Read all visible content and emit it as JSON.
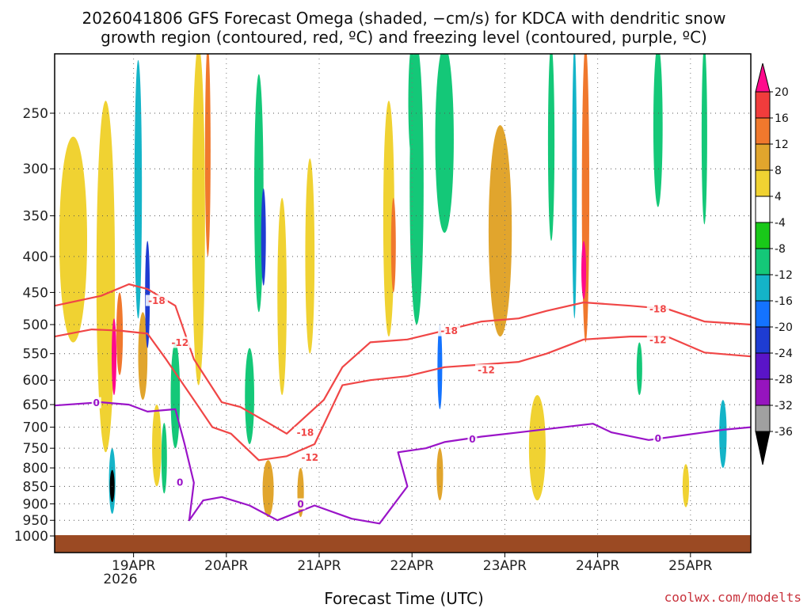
{
  "chart_data": {
    "type": "heatmap",
    "title_line1": "2026041806 GFS Forecast Omega (shaded, −cm/s) for KDCA with dendritic snow",
    "title_line2": "growth region (contoured, red, ºC) and freezing level (contoured, purple, ºC)",
    "xlabel": "Forecast Time (UTC)",
    "ylabel": "",
    "credit": "coolwx.com/modelts",
    "x_range_days": [
      0,
      7.5
    ],
    "x_ticks": [
      {
        "label": "19APR",
        "day": 0.85
      },
      {
        "label": "20APR",
        "day": 1.85
      },
      {
        "label": "21APR",
        "day": 2.85
      },
      {
        "label": "22APR",
        "day": 3.85
      },
      {
        "label": "23APR",
        "day": 4.85
      },
      {
        "label": "24APR",
        "day": 5.85
      },
      {
        "label": "25APR",
        "day": 6.85
      }
    ],
    "x_year_label": "2026",
    "y_range_hpa": [
      200,
      1020
    ],
    "y_ticks": [
      250,
      300,
      350,
      400,
      450,
      500,
      550,
      600,
      650,
      700,
      750,
      800,
      850,
      900,
      950,
      1000
    ],
    "colorbar": {
      "levels": [
        "20",
        "16",
        "12",
        "8",
        "4",
        "-4",
        "-8",
        "-12",
        "-16",
        "-20",
        "-24",
        "-28",
        "-32",
        "-36"
      ],
      "colors": [
        "#ff0a8c",
        "#f03c3c",
        "#f0782d",
        "#e1a52d",
        "#f0d232",
        "#ffffff",
        "#19c819",
        "#14c878",
        "#14b4c8",
        "#1473ff",
        "#1e3cd2",
        "#5a14c8",
        "#9614be",
        "#a0a0a0",
        "#000000"
      ]
    },
    "omega_cells": [
      {
        "day": 0.2,
        "p": 400,
        "w": 0.3,
        "h": 260,
        "v": 5
      },
      {
        "day": 0.55,
        "p": 500,
        "w": 0.2,
        "h": 520,
        "v": 5
      },
      {
        "day": 0.7,
        "p": 520,
        "w": 0.07,
        "h": 140,
        "v": 14
      },
      {
        "day": 0.95,
        "p": 560,
        "w": 0.1,
        "h": 160,
        "v": 10
      },
      {
        "day": 0.62,
        "p": 840,
        "w": 0.07,
        "h": 180,
        "v": -15
      },
      {
        "day": 0.62,
        "p": 850,
        "w": 0.025,
        "h": 90,
        "v": -36
      },
      {
        "day": 0.64,
        "p": 560,
        "w": 0.05,
        "h": 140,
        "v": 20
      },
      {
        "day": 0.9,
        "p": 350,
        "w": 0.08,
        "h": 280,
        "v": -12
      },
      {
        "day": 1.0,
        "p": 460,
        "w": 0.05,
        "h": 160,
        "v": -22
      },
      {
        "day": 1.1,
        "p": 750,
        "w": 0.1,
        "h": 200,
        "v": 6
      },
      {
        "day": 1.3,
        "p": 640,
        "w": 0.1,
        "h": 220,
        "v": -10
      },
      {
        "day": 1.18,
        "p": 780,
        "w": 0.06,
        "h": 180,
        "v": -8
      },
      {
        "day": 1.55,
        "p": 380,
        "w": 0.14,
        "h": 460,
        "v": 5
      },
      {
        "day": 1.65,
        "p": 300,
        "w": 0.06,
        "h": 200,
        "v": 12
      },
      {
        "day": 2.2,
        "p": 350,
        "w": 0.1,
        "h": 260,
        "v": -10
      },
      {
        "day": 2.25,
        "p": 380,
        "w": 0.04,
        "h": 120,
        "v": -20
      },
      {
        "day": 2.1,
        "p": 640,
        "w": 0.1,
        "h": 200,
        "v": -10
      },
      {
        "day": 2.45,
        "p": 480,
        "w": 0.1,
        "h": 300,
        "v": 6
      },
      {
        "day": 2.3,
        "p": 860,
        "w": 0.12,
        "h": 160,
        "v": 8
      },
      {
        "day": 2.75,
        "p": 420,
        "w": 0.1,
        "h": 260,
        "v": 5
      },
      {
        "day": 2.65,
        "p": 870,
        "w": 0.07,
        "h": 140,
        "v": 9
      },
      {
        "day": 3.6,
        "p": 380,
        "w": 0.12,
        "h": 280,
        "v": 6
      },
      {
        "day": 3.65,
        "p": 390,
        "w": 0.05,
        "h": 120,
        "v": 14
      },
      {
        "day": 3.85,
        "p": 220,
        "w": 0.08,
        "h": 140,
        "v": -10
      },
      {
        "day": 3.9,
        "p": 350,
        "w": 0.15,
        "h": 300,
        "v": -8
      },
      {
        "day": 4.2,
        "p": 260,
        "w": 0.2,
        "h": 220,
        "v": -8
      },
      {
        "day": 4.15,
        "p": 580,
        "w": 0.05,
        "h": 160,
        "v": -16
      },
      {
        "day": 4.15,
        "p": 820,
        "w": 0.07,
        "h": 140,
        "v": 8
      },
      {
        "day": 4.8,
        "p": 390,
        "w": 0.25,
        "h": 260,
        "v": 8
      },
      {
        "day": 5.35,
        "p": 260,
        "w": 0.07,
        "h": 240,
        "v": -8
      },
      {
        "day": 5.6,
        "p": 330,
        "w": 0.05,
        "h": 320,
        "v": -14
      },
      {
        "day": 5.72,
        "p": 330,
        "w": 0.08,
        "h": 400,
        "v": 12
      },
      {
        "day": 5.7,
        "p": 420,
        "w": 0.03,
        "h": 80,
        "v": 20
      },
      {
        "day": 5.2,
        "p": 760,
        "w": 0.18,
        "h": 260,
        "v": 6
      },
      {
        "day": 6.5,
        "p": 260,
        "w": 0.1,
        "h": 160,
        "v": -8
      },
      {
        "day": 7.0,
        "p": 280,
        "w": 0.06,
        "h": 160,
        "v": -8
      },
      {
        "day": 7.2,
        "p": 720,
        "w": 0.08,
        "h": 160,
        "v": -12
      },
      {
        "day": 6.3,
        "p": 580,
        "w": 0.06,
        "h": 100,
        "v": -8
      },
      {
        "day": 6.8,
        "p": 850,
        "w": 0.07,
        "h": 120,
        "v": 5
      }
    ],
    "contours": [
      {
        "name": "dendritic-18",
        "color": "#f04646",
        "label": "-18",
        "points": [
          [
            0,
            470
          ],
          [
            0.5,
            455
          ],
          [
            0.8,
            438
          ],
          [
            1.0,
            445
          ],
          [
            1.3,
            470
          ],
          [
            1.5,
            560
          ],
          [
            1.8,
            645
          ],
          [
            2.0,
            655
          ],
          [
            2.3,
            690
          ],
          [
            2.5,
            715
          ],
          [
            2.9,
            640
          ],
          [
            3.1,
            575
          ],
          [
            3.4,
            530
          ],
          [
            3.8,
            525
          ],
          [
            4.2,
            510
          ],
          [
            4.6,
            495
          ],
          [
            5.0,
            490
          ],
          [
            5.3,
            478
          ],
          [
            5.7,
            465
          ],
          [
            6.2,
            470
          ],
          [
            6.6,
            475
          ],
          [
            7.0,
            495
          ],
          [
            7.5,
            500
          ]
        ]
      },
      {
        "name": "dendritic-12",
        "color": "#f04646",
        "label": "-12",
        "points": [
          [
            0,
            520
          ],
          [
            0.4,
            508
          ],
          [
            0.7,
            510
          ],
          [
            1.0,
            515
          ],
          [
            1.2,
            560
          ],
          [
            1.5,
            640
          ],
          [
            1.7,
            700
          ],
          [
            1.9,
            715
          ],
          [
            2.2,
            780
          ],
          [
            2.5,
            770
          ],
          [
            2.8,
            740
          ],
          [
            3.1,
            610
          ],
          [
            3.4,
            600
          ],
          [
            3.8,
            592
          ],
          [
            4.2,
            575
          ],
          [
            4.6,
            570
          ],
          [
            5.0,
            565
          ],
          [
            5.3,
            550
          ],
          [
            5.7,
            525
          ],
          [
            6.2,
            520
          ],
          [
            6.6,
            520
          ],
          [
            7.0,
            548
          ],
          [
            7.5,
            555
          ]
        ]
      },
      {
        "name": "freezing-0",
        "color": "#9a14c8",
        "label": "0",
        "points": [
          [
            0,
            652
          ],
          [
            0.5,
            645
          ],
          [
            0.8,
            650
          ],
          [
            1.0,
            665
          ],
          [
            1.3,
            660
          ],
          [
            1.4,
            740
          ],
          [
            1.5,
            840
          ],
          [
            1.45,
            950
          ],
          [
            1.6,
            890
          ],
          [
            1.8,
            880
          ],
          [
            2.1,
            905
          ],
          [
            2.4,
            950
          ],
          [
            2.8,
            905
          ],
          [
            3.2,
            945
          ],
          [
            3.5,
            960
          ],
          [
            3.8,
            850
          ],
          [
            3.7,
            760
          ],
          [
            4.0,
            750
          ],
          [
            4.2,
            735
          ],
          [
            4.6,
            722
          ],
          [
            5.0,
            712
          ],
          [
            5.4,
            702
          ],
          [
            5.8,
            692
          ],
          [
            6.0,
            712
          ],
          [
            6.4,
            730
          ],
          [
            6.8,
            718
          ],
          [
            7.2,
            706
          ],
          [
            7.5,
            700
          ]
        ]
      }
    ],
    "contour_labels": [
      {
        "text": "-18",
        "day": 1.1,
        "p": 462,
        "color": "#f04646"
      },
      {
        "text": "-12",
        "day": 1.35,
        "p": 530,
        "color": "#f04646"
      },
      {
        "text": "-18",
        "day": 2.7,
        "p": 712,
        "color": "#f04646"
      },
      {
        "text": "-12",
        "day": 2.75,
        "p": 772,
        "color": "#f04646"
      },
      {
        "text": "-18",
        "day": 4.25,
        "p": 510,
        "color": "#f04646"
      },
      {
        "text": "-12",
        "day": 4.65,
        "p": 580,
        "color": "#f04646"
      },
      {
        "text": "-18",
        "day": 6.5,
        "p": 475,
        "color": "#f04646"
      },
      {
        "text": "-12",
        "day": 6.5,
        "p": 525,
        "color": "#f04646"
      },
      {
        "text": "0",
        "day": 0.45,
        "p": 646,
        "color": "#9a14c8"
      },
      {
        "text": "0",
        "day": 1.35,
        "p": 838,
        "color": "#9a14c8"
      },
      {
        "text": "0",
        "day": 2.65,
        "p": 900,
        "color": "#9a14c8"
      },
      {
        "text": "0",
        "day": 4.5,
        "p": 728,
        "color": "#9a14c8"
      },
      {
        "text": "0",
        "day": 6.5,
        "p": 726,
        "color": "#9a14c8"
      }
    ]
  }
}
